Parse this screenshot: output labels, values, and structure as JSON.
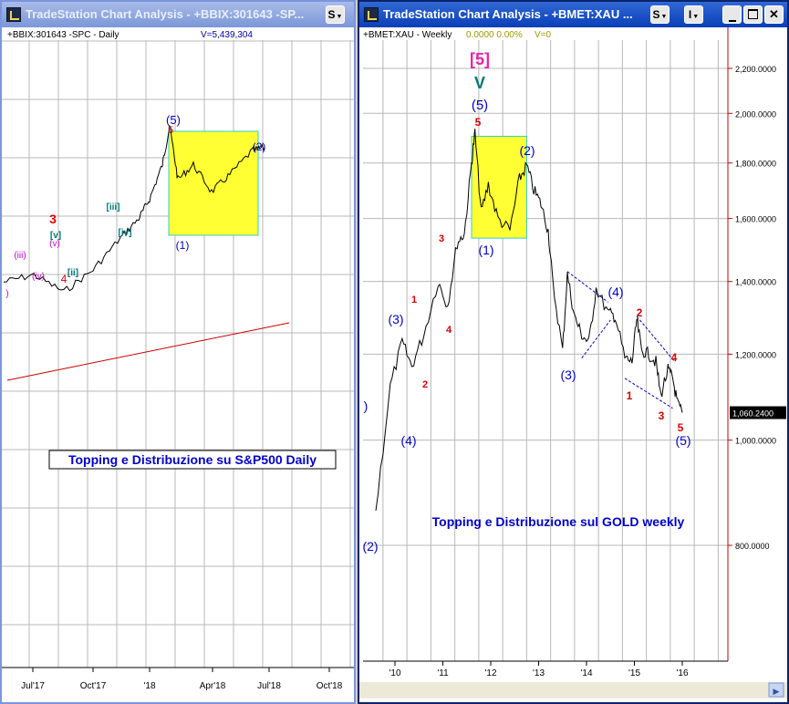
{
  "left_window": {
    "title": "TradeStation Chart Analysis - +BBIX:301643 -SP...",
    "symbol_label": "+BBIX:301643 -SPC - Daily",
    "volume_label": "V=5,439,304",
    "button_s": "S",
    "icon": "tradestation-app-icon"
  },
  "right_window": {
    "title": "TradeStation Chart Analysis - +BMET:XAU ...",
    "symbol_label": "+BMET:XAU - Weekly",
    "quote_values": "0.0000 0.00%",
    "volume_label": "V=0",
    "button_s": "S",
    "button_i": "I",
    "buttons": [
      "minimize",
      "maximize",
      "close"
    ],
    "icon": "tradestation-app-icon"
  },
  "chart_data": [
    {
      "type": "line",
      "title": "Topping e Distribuzione su S&P500 Daily",
      "timeframe": "Daily",
      "x_tick_labels": [
        "Jul'17",
        "Oct'17",
        "'18",
        "Apr'18",
        "Jul'18",
        "Oct'18"
      ],
      "grid": true,
      "series": [
        {
          "x": [
            "Jun'17",
            "Jul'17",
            "Aug'17",
            "Sep'17",
            "Oct'17",
            "Nov'17",
            "Dec'17",
            "Jan'18",
            "late Jan'18",
            "Feb'18",
            "Mar'18",
            "Apr'18",
            "May'18",
            "Jun'18",
            "Jul'18"
          ],
          "values": [
            0.1,
            0.13,
            0.06,
            0.15,
            0.28,
            0.36,
            0.44,
            0.58,
            0.74,
            0.52,
            0.58,
            0.47,
            0.54,
            0.64,
            0.65
          ]
        }
      ],
      "wave_labels": [
        "3",
        "(iii)",
        "(v)",
        "(iv)",
        "4",
        "[v]",
        "[ii]",
        "[iii]",
        "[iv]",
        "(5)",
        "5",
        "(1)",
        "(2)"
      ],
      "highlight_box": "yellow distribution box from late Jan'18 to Jun'18",
      "trendline": "long-term red uptrend line"
    },
    {
      "type": "line",
      "title": "Topping e Distribuzione sul GOLD weekly",
      "timeframe": "Weekly",
      "x_tick_labels": [
        "'10",
        "'11",
        "'12",
        "'13",
        "'14",
        "'15",
        "'16"
      ],
      "y_tick_labels": [
        "2,200.0000",
        "2,000.0000",
        "1,800.0000",
        "1,600.0000",
        "1,400.0000",
        "1,200.0000",
        "1,000.0000",
        "800.0000"
      ],
      "ylim": [
        700,
        2350
      ],
      "y_scale": "log",
      "last_value_label": "1,060.2400",
      "grid": true,
      "series": [
        {
          "x": [
            2009.6,
            2009.9,
            2010.15,
            2010.35,
            2010.6,
            2010.9,
            2011.1,
            2011.3,
            2011.45,
            2011.6,
            2011.67,
            2011.8,
            2011.95,
            2012.15,
            2012.4,
            2012.6,
            2012.75,
            2012.9,
            2013.05,
            2013.2,
            2013.3,
            2013.5,
            2013.6,
            2013.75,
            2013.9,
            2014.05,
            2014.2,
            2014.45,
            2014.6,
            2014.8,
            2014.95,
            2015.05,
            2015.15,
            2015.3,
            2015.45,
            2015.55,
            2015.7,
            2015.8,
            2015.9,
            2016.0
          ],
          "values": [
            860,
            1120,
            1230,
            1170,
            1250,
            1400,
            1330,
            1520,
            1550,
            1800,
            1920,
            1620,
            1720,
            1600,
            1560,
            1740,
            1790,
            1700,
            1650,
            1560,
            1390,
            1210,
            1420,
            1300,
            1250,
            1230,
            1380,
            1310,
            1300,
            1190,
            1180,
            1290,
            1210,
            1200,
            1180,
            1100,
            1160,
            1140,
            1080,
            1060
          ]
        }
      ],
      "wave_labels": [
        "[5]",
        "V",
        "(5)",
        "5",
        "(1)",
        "(2)",
        "(3)",
        "(4)",
        "(3)",
        "(4)",
        "(2)",
        "1",
        "2",
        "3",
        "4",
        "5",
        "(5)"
      ],
      "highlight_box": "yellow distribution box 2011.6–2012.75, 1535–1905"
    }
  ],
  "colors": {
    "wave_blue": "#0000cc",
    "wave_red": "#dd0000",
    "wave_magenta": "#cc00cc",
    "wave_teal": "#007777",
    "wave_pink": "#ee22aa",
    "box_fill": "#ffff33",
    "box_border": "#33cccc",
    "axis_red": "#cc0000",
    "grid": "#b8b8b8"
  }
}
